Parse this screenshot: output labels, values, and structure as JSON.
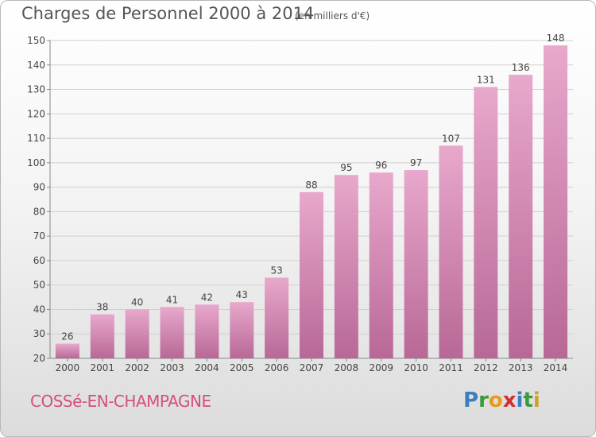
{
  "header": {
    "title": "Charges de Personnel 2000 à 2014",
    "subtitle": "(en milliers d'€)"
  },
  "footer": {
    "commune": "COSSé-EN-CHAMPAGNE",
    "logo": [
      "P",
      "r",
      "o",
      "x",
      "i",
      "t",
      "i"
    ],
    "logo_colors": [
      "#3a7fc0",
      "#3a9a3a",
      "#e89a1a",
      "#d43030",
      "#3a7fc0",
      "#3a9a3a",
      "#d0a020"
    ]
  },
  "colors": {
    "bar_light": "#e8a8cc",
    "bar_dark": "#b86896",
    "grid": "#d0d0d0",
    "axis_text": "#444444"
  },
  "chart_data": {
    "type": "bar",
    "title": "Charges de Personnel 2000 à 2014",
    "subtitle": "(en milliers d'€)",
    "categories": [
      "2000",
      "2001",
      "2002",
      "2003",
      "2004",
      "2005",
      "2006",
      "2007",
      "2008",
      "2009",
      "2010",
      "2011",
      "2012",
      "2013",
      "2014"
    ],
    "values": [
      26,
      38,
      40,
      41,
      42,
      43,
      53,
      88,
      95,
      96,
      97,
      107,
      131,
      136,
      148
    ],
    "ylim": [
      20,
      150
    ],
    "yticks": [
      20,
      30,
      40,
      50,
      60,
      70,
      80,
      90,
      100,
      110,
      120,
      130,
      140,
      150
    ],
    "grid": true,
    "legend": "none"
  }
}
